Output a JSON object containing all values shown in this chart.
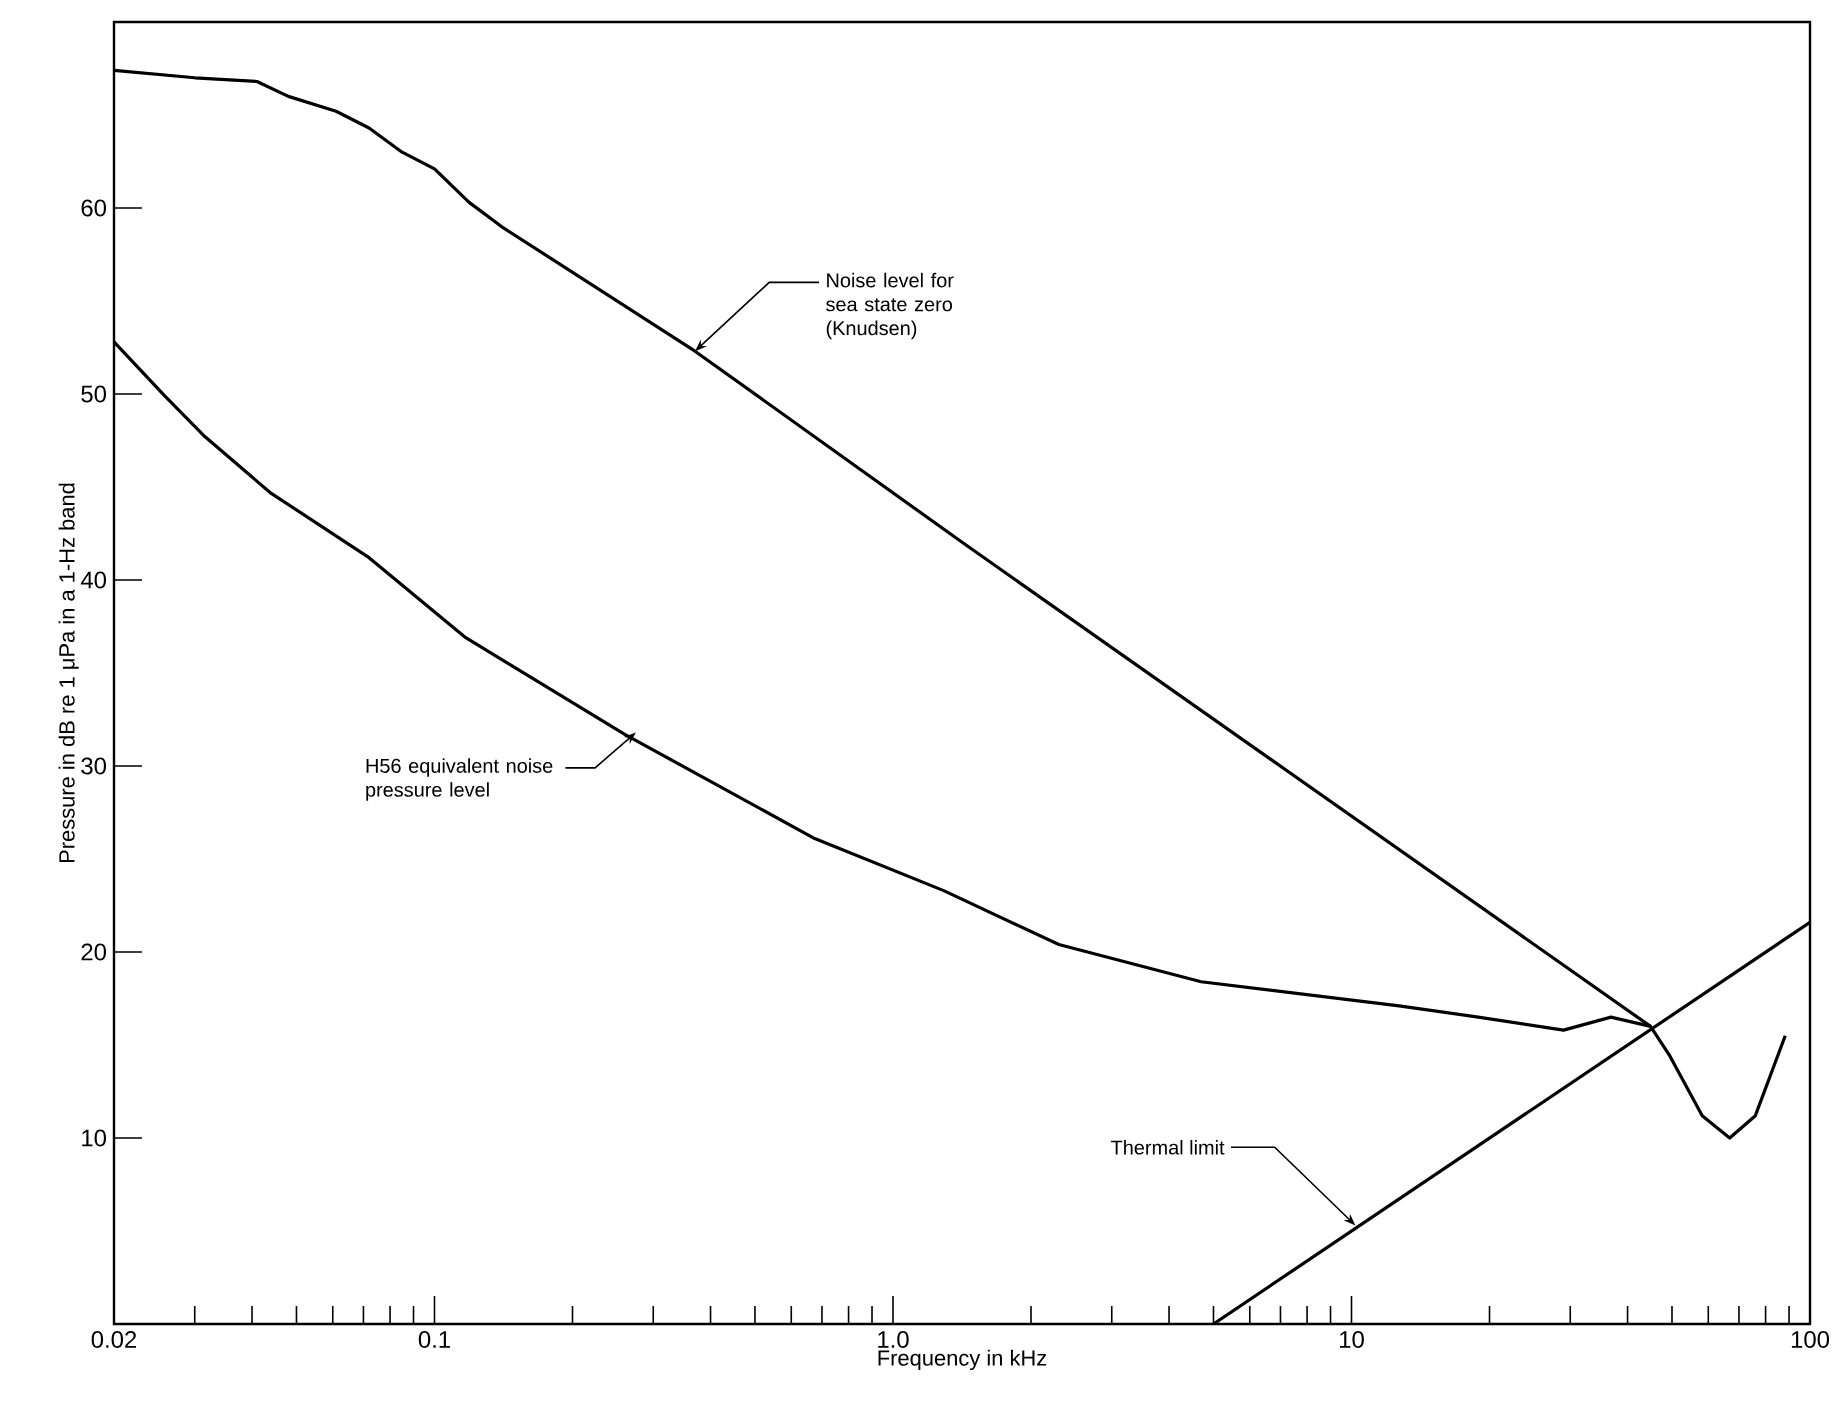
{
  "chart_data": {
    "type": "line",
    "xlabel": "Frequency in kHz",
    "ylabel": "Pressure in dB re 1 μPa in a 1-Hz band",
    "log": "x",
    "xlim": [
      0.02,
      100
    ],
    "ylim": [
      0,
      70
    ],
    "xticks": [
      0.02,
      0.1,
      {
        "value": 1,
        "label": "1.0"
      },
      10,
      100
    ],
    "yticks": [
      10,
      20,
      30,
      40,
      50,
      60
    ],
    "grid": false,
    "marker": "none",
    "line_style": "solid",
    "series": [
      {
        "color": "#000000",
        "x": [
          0.02,
          0.03,
          0.041,
          0.048,
          0.061,
          0.072,
          0.085,
          0.1,
          0.119,
          0.14,
          0.37,
          1.42,
          44.9
        ],
        "values": [
          67.4,
          67.0,
          66.8,
          66.0,
          65.2,
          64.3,
          63.0,
          62.1,
          60.3,
          59.0,
          52.3,
          42.0,
          16.0
        ]
      },
      {
        "color": "#000000",
        "x": [
          0.02,
          0.0258,
          0.0316,
          0.0438,
          0.072,
          0.117,
          0.26,
          0.675,
          1.29,
          2.3,
          4.7,
          12.7,
          18.9,
          29,
          36.8,
          44.9,
          49.5,
          58.2,
          66.8,
          76,
          88.3
        ],
        "values": [
          52.8,
          49.9,
          47.7,
          44.7,
          41.2,
          36.9,
          31.7,
          26.1,
          23.3,
          20.4,
          18.4,
          17.1,
          16.5,
          15.8,
          16.5,
          16.0,
          14.4,
          11.2,
          10.0,
          11.2,
          15.5
        ]
      },
      {
        "color": "#000000",
        "x": [
          5.0,
          100
        ],
        "values": [
          0,
          21.6
        ]
      }
    ],
    "annotations": [
      {
        "text": "Noise level for sea state zero (Knudsen)",
        "x": 0.37,
        "y": 52.3
      },
      {
        "text": "H56 equivalent noise pressure level",
        "x": 0.275,
        "y": 31.8
      },
      {
        "text": "Thermal limit",
        "x": 10.2,
        "y": 5.3
      }
    ]
  }
}
